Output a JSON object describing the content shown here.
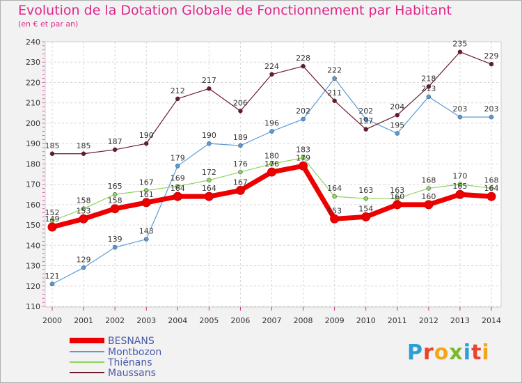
{
  "chart_data": {
    "type": "line",
    "title": "Evolution de la Dotation Globale de Fonctionnement par Habitant",
    "subtitle": "(en € et par an)",
    "xlabel": "",
    "ylabel": "",
    "x": [
      "2000",
      "2001",
      "2002",
      "2003",
      "2004",
      "2005",
      "2006",
      "2007",
      "2008",
      "2009",
      "2010",
      "2011",
      "2012",
      "2013",
      "2014"
    ],
    "ylim": [
      110,
      240
    ],
    "yticks": [
      110,
      120,
      130,
      140,
      150,
      160,
      170,
      180,
      190,
      200,
      210,
      220,
      230,
      240
    ],
    "grid": true,
    "legend_position": "bottom-left",
    "series": [
      {
        "name": "BESNANS",
        "color": "#ee0000",
        "values": [
          149,
          153,
          158,
          161,
          164,
          164,
          167,
          176,
          179,
          153,
          154,
          160,
          160,
          165,
          164
        ]
      },
      {
        "name": "Montbozon",
        "color": "#5b9bd5",
        "values": [
          121,
          129,
          139,
          143,
          179,
          190,
          189,
          196,
          202,
          222,
          202,
          195,
          213,
          203,
          203
        ]
      },
      {
        "name": "Thiénans",
        "color": "#8fd45a",
        "values": [
          152,
          158,
          165,
          167,
          169,
          172,
          176,
          180,
          183,
          164,
          163,
          163,
          168,
          170,
          168
        ]
      },
      {
        "name": "Maussans",
        "color": "#6b1a2a",
        "values": [
          185,
          185,
          187,
          190,
          212,
          217,
          206,
          224,
          228,
          211,
          197,
          204,
          218,
          235,
          229
        ]
      }
    ]
  },
  "logo_text": "Proxiti"
}
